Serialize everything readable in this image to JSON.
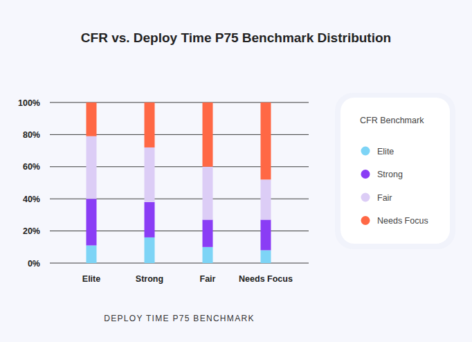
{
  "chart_data": {
    "type": "bar",
    "title": "CFR vs. Deploy Time P75 Benchmark Distribution",
    "x_label": "DEPLOY TIME P75 BENCHMARK",
    "legend_title": "CFR Benchmark",
    "categories": [
      "Elite",
      "Strong",
      "Fair",
      "Needs Focus"
    ],
    "series": [
      {
        "name": "Elite",
        "color": "#7dd4f6",
        "values": [
          11,
          16,
          10,
          8
        ]
      },
      {
        "name": "Strong",
        "color": "#8a3df5",
        "values": [
          29,
          22,
          17,
          19
        ]
      },
      {
        "name": "Fair",
        "color": "#dccdf6",
        "values": [
          39,
          34,
          33,
          25
        ]
      },
      {
        "name": "Needs Focus",
        "color": "#ff6845",
        "values": [
          21,
          28,
          40,
          48
        ]
      }
    ],
    "ylim": [
      0,
      100
    ],
    "yticks": [
      {
        "value": 0,
        "label": "0%"
      },
      {
        "value": 20,
        "label": "20%"
      },
      {
        "value": 40,
        "label": "40%"
      },
      {
        "value": 60,
        "label": "60%"
      },
      {
        "value": 80,
        "label": "80%"
      },
      {
        "value": 100,
        "label": "100%"
      }
    ],
    "stacked": true,
    "grid": true,
    "legend": "right"
  }
}
